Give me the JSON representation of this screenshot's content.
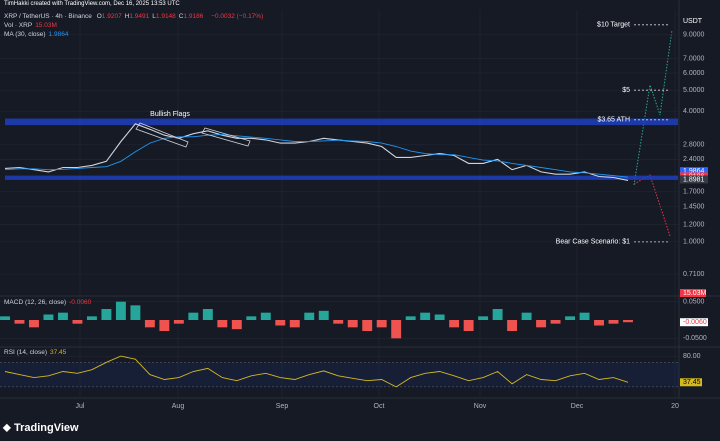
{
  "header": {
    "credit": "TimHakki created with TradingView.com, Dec 16, 2025 13:53 UTC",
    "symbol": "XRP / TetherUS · 4h · Binance",
    "ohlc": [
      {
        "key": "O",
        "value": 1.9207
      },
      {
        "key": "H",
        "value": 1.9491
      },
      {
        "key": "L",
        "value": 1.9148
      },
      {
        "key": "C",
        "value": 1.9186
      }
    ],
    "change": "−0.0032 (−0.17%)",
    "volume": {
      "label": "Vol · XRP",
      "value": "15.03M"
    },
    "ma": {
      "label": "MA (30, close)",
      "value": 1.9864
    }
  },
  "currency": "USDT",
  "footer": {
    "brand": "TradingView"
  },
  "chart_data": [
    {
      "type": "line",
      "log": true,
      "ylim": [
        0.6,
        11.1
      ],
      "yticks": [
        {
          "value": 9,
          "label": "9.0000"
        },
        {
          "value": 7,
          "label": "7.0000"
        },
        {
          "value": 6,
          "label": "6.0000"
        },
        {
          "value": 5,
          "label": "5.0000"
        },
        {
          "value": 4,
          "label": "4.0000"
        },
        {
          "value": 2.8,
          "label": "2.8000"
        },
        {
          "value": 2.4,
          "label": "2.4000"
        },
        {
          "value": 1.7,
          "label": "1.7000"
        },
        {
          "value": 1.45,
          "label": "1.4500"
        },
        {
          "value": 1.2,
          "label": "1.2000"
        },
        {
          "value": 1,
          "label": "1.0000"
        },
        {
          "value": 0.71,
          "label": "0.7100"
        }
      ],
      "xticks": [
        "Jul",
        "Aug",
        "Sep",
        "Oct",
        "Nov",
        "Dec",
        "20"
      ],
      "grid": true,
      "series": [
        {
          "color": "#d1d4dc",
          "values": [
            2.18,
            2.2,
            2.15,
            2.1,
            2.2,
            2.2,
            2.25,
            2.35,
            2.9,
            3.5,
            3.3,
            3.1,
            3.0,
            3.15,
            3.25,
            3.1,
            3.0,
            3.0,
            2.95,
            2.85,
            2.85,
            2.9,
            3.0,
            2.95,
            2.9,
            2.85,
            2.75,
            2.45,
            2.45,
            2.5,
            2.55,
            2.5,
            2.3,
            2.3,
            2.4,
            2.15,
            2.25,
            2.1,
            2.05,
            2.05,
            2.1,
            2.0,
            1.98,
            1.92
          ]
        },
        {
          "color": "#2196f3",
          "values": [
            2.15,
            2.17,
            2.17,
            2.15,
            2.16,
            2.18,
            2.2,
            2.22,
            2.35,
            2.6,
            2.85,
            3.0,
            3.05,
            3.05,
            3.1,
            3.12,
            3.08,
            3.04,
            3.0,
            2.95,
            2.9,
            2.9,
            2.92,
            2.94,
            2.92,
            2.9,
            2.85,
            2.75,
            2.62,
            2.55,
            2.52,
            2.52,
            2.45,
            2.38,
            2.36,
            2.3,
            2.25,
            2.2,
            2.15,
            2.1,
            2.08,
            2.05,
            2.02,
            1.9864
          ]
        }
      ],
      "zones": [
        [
          3.45,
          3.7
        ],
        [
          1.93,
          2.02
        ]
      ],
      "zone_color": "#1e3fbf",
      "pattern_label": "Bullish Flags",
      "annotations": [
        {
          "text": "$10 Target",
          "value": 10
        },
        {
          "text": "$5",
          "value": 5
        },
        {
          "text": "$3.65 ATH",
          "value": 3.65
        },
        {
          "text": "Bear Case Scenario: $1",
          "value": 1
        }
      ],
      "price_labels": [
        {
          "value": 1.9864,
          "color": "#2962ff"
        },
        {
          "value": 1.9186,
          "color": "#f23645"
        },
        {
          "value": 1.8981,
          "color": "#363a45"
        }
      ]
    },
    {
      "type": "bar",
      "title": "MACD (12, 26, close)",
      "ylim": [
        -0.06,
        0.06
      ],
      "yticks": [
        {
          "value": 0.05,
          "label": "0.0500"
        },
        {
          "value": -0.05,
          "label": "-0.0500"
        }
      ],
      "colors": [
        "#26a69a",
        "#ef5350"
      ],
      "values": [
        0.01,
        -0.01,
        -0.02,
        0.015,
        0.02,
        -0.01,
        0.01,
        0.03,
        0.05,
        0.04,
        -0.02,
        -0.03,
        -0.01,
        0.02,
        0.03,
        -0.02,
        -0.025,
        0.01,
        0.02,
        -0.015,
        -0.02,
        0.02,
        0.025,
        -0.01,
        -0.02,
        -0.03,
        -0.02,
        -0.05,
        0.01,
        0.02,
        0.015,
        -0.02,
        -0.03,
        0.01,
        0.03,
        -0.03,
        0.02,
        -0.02,
        -0.01,
        0.01,
        0.02,
        -0.015,
        -0.01,
        -0.006
      ],
      "last": {
        "value": -0.006,
        "label": "-0.0060"
      }
    },
    {
      "type": "line",
      "title": "RSI (14, close)",
      "ylim": [
        20,
        90
      ],
      "yticks": [
        {
          "value": 80,
          "label": "80.00"
        }
      ],
      "band": [
        30,
        70
      ],
      "color": "#d4b820",
      "values": [
        55,
        50,
        45,
        48,
        55,
        52,
        58,
        70,
        80,
        75,
        50,
        42,
        45,
        55,
        60,
        45,
        40,
        48,
        52,
        45,
        42,
        50,
        56,
        48,
        44,
        40,
        42,
        30,
        45,
        52,
        55,
        48,
        40,
        45,
        55,
        35,
        50,
        42,
        40,
        48,
        52,
        42,
        45,
        37.45
      ],
      "last": 37.45
    }
  ]
}
